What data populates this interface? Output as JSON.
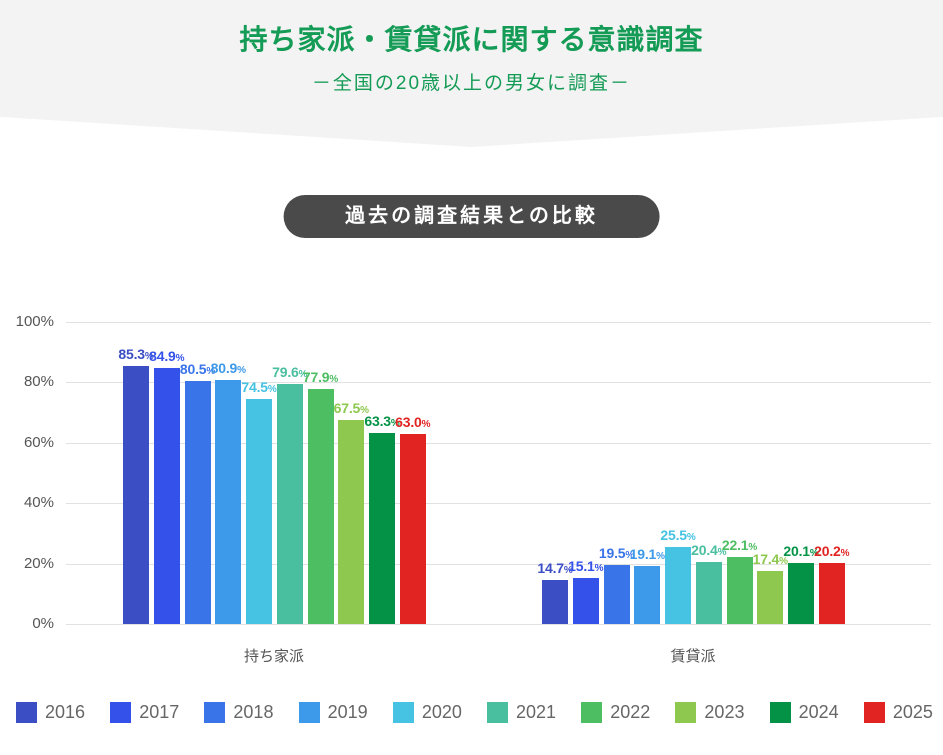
{
  "header": {
    "title": "持ち家派・賃貸派に関する意識調査",
    "subtitle": "－全国の20歳以上の男女に調査－",
    "bg_color": "#f3f3f4",
    "text_color": "#149b55"
  },
  "badge": {
    "label": "過去の調査結果との比較",
    "bg_color": "#4a4a4a",
    "text_color": "#ffffff"
  },
  "chart_data": {
    "type": "bar",
    "title": "過去の調査結果との比較",
    "categories": [
      "持ち家派",
      "賃貸派"
    ],
    "series": [
      {
        "name": "2016",
        "color": "#3b4ec4",
        "values": [
          85.3,
          14.7
        ]
      },
      {
        "name": "2017",
        "color": "#3452e9",
        "values": [
          84.9,
          15.1
        ]
      },
      {
        "name": "2018",
        "color": "#3a74e9",
        "values": [
          80.5,
          19.5
        ]
      },
      {
        "name": "2019",
        "color": "#3d99e9",
        "values": [
          80.9,
          19.1
        ]
      },
      {
        "name": "2020",
        "color": "#46c2e2",
        "values": [
          74.5,
          25.5
        ]
      },
      {
        "name": "2021",
        "color": "#49bfa0",
        "values": [
          79.6,
          20.4
        ]
      },
      {
        "name": "2022",
        "color": "#4dbe62",
        "values": [
          77.9,
          22.1
        ]
      },
      {
        "name": "2023",
        "color": "#8ec84e",
        "values": [
          67.5,
          17.4
        ]
      },
      {
        "name": "2024",
        "color": "#049346",
        "values": [
          63.3,
          20.1
        ]
      },
      {
        "name": "2025",
        "color": "#e12322",
        "values": [
          63.0,
          20.2
        ]
      }
    ],
    "value_label_suffix": "%",
    "ylim": [
      0,
      100
    ],
    "yticks": [
      0,
      20,
      40,
      60,
      80,
      100
    ],
    "ytick_suffix": "%",
    "ytick_labels": [
      "0%",
      "20%",
      "40%",
      "60%",
      "80%",
      "100%"
    ],
    "grid": true,
    "grid_color": "#e1e1e1",
    "axis_text_color": "#555555",
    "category_text_color": "#555555",
    "legend_position": "bottom",
    "legend_text_color": "#666666",
    "legend_labels": [
      "2016",
      "2017",
      "2018",
      "2019",
      "2020",
      "2021",
      "2022",
      "2023",
      "2024",
      "2025"
    ]
  }
}
